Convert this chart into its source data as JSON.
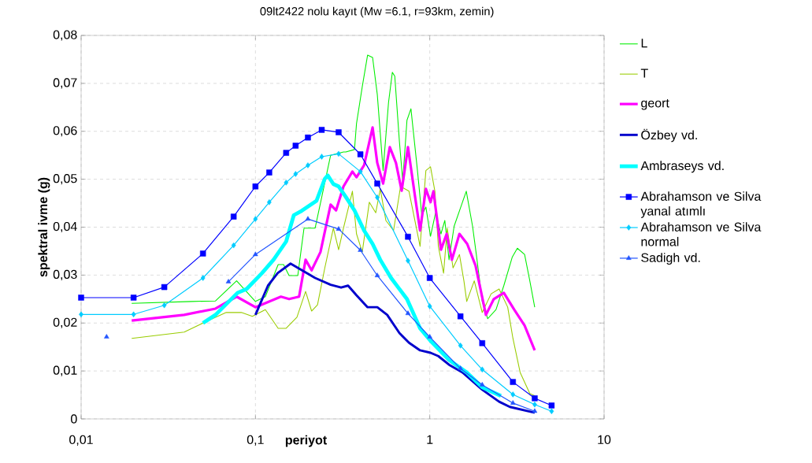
{
  "chart_data": {
    "type": "line",
    "title": "09lt2422 nolu kayıt (Mw =6.1, r=93km, zemin)",
    "xlabel": "periyot",
    "ylabel": "spektral ivme (g)",
    "log": "x",
    "grid": true,
    "legend": "right",
    "line_style": "solid",
    "xlim": [
      0.01,
      10
    ],
    "ylim": [
      0,
      0.08
    ],
    "xticks": [
      {
        "value": 0.01,
        "label": "0,01"
      },
      {
        "value": 0.1,
        "label": "0,1"
      },
      1,
      10
    ],
    "yticks": [
      0,
      {
        "value": 0.01,
        "label": "0,01"
      },
      {
        "value": 0.02,
        "label": "0,02"
      },
      {
        "value": 0.03,
        "label": "0,03"
      },
      {
        "value": 0.04,
        "label": "0,04"
      },
      {
        "value": 0.05,
        "label": "0,05"
      },
      {
        "value": 0.06,
        "label": "0,06"
      },
      {
        "value": 0.07,
        "label": "0,07"
      },
      {
        "value": 0.08,
        "label": "0,08"
      }
    ],
    "series": [
      {
        "name": "L",
        "color": "#00ee00",
        "marker": "none",
        "x": [
          0.0195,
          0.043,
          0.059,
          0.078,
          0.1,
          0.114,
          0.135,
          0.145,
          0.156,
          0.175,
          0.184,
          0.19,
          0.22,
          0.27,
          0.32,
          0.33,
          0.37,
          0.38,
          0.41,
          0.44,
          0.47,
          0.5,
          0.54,
          0.58,
          0.61,
          0.63,
          0.67,
          0.7,
          0.74,
          0.78,
          0.85,
          0.9,
          0.95,
          1.01,
          1.08,
          1.16,
          1.22,
          1.29,
          1.38,
          1.54,
          1.62,
          1.76,
          1.85,
          2.0,
          2.15,
          2.4,
          2.66,
          2.97,
          3.18,
          3.5,
          3.75,
          4.0
        ],
        "values": [
          0.0241,
          0.0245,
          0.0246,
          0.0288,
          0.0245,
          0.0255,
          0.0322,
          0.0322,
          0.0299,
          0.0299,
          0.036,
          0.0398,
          0.0398,
          0.055,
          0.0557,
          0.0557,
          0.0562,
          0.0616,
          0.0693,
          0.0759,
          0.0754,
          0.0677,
          0.0518,
          0.066,
          0.0723,
          0.0715,
          0.0578,
          0.0496,
          0.0623,
          0.0647,
          0.0518,
          0.0425,
          0.0442,
          0.0381,
          0.043,
          0.0386,
          0.0414,
          0.0332,
          0.0402,
          0.0452,
          0.0475,
          0.0402,
          0.0343,
          0.0245,
          0.0209,
          0.0228,
          0.0278,
          0.0337,
          0.0356,
          0.0343,
          0.0288,
          0.0233
        ]
      },
      {
        "name": "T",
        "color": "#99cc00",
        "marker": "none",
        "x": [
          0.0195,
          0.039,
          0.05,
          0.068,
          0.083,
          0.096,
          0.114,
          0.135,
          0.15,
          0.173,
          0.194,
          0.21,
          0.227,
          0.25,
          0.28,
          0.3,
          0.32,
          0.36,
          0.38,
          0.41,
          0.45,
          0.49,
          0.52,
          0.56,
          0.62,
          0.68,
          0.76,
          0.88,
          0.95,
          1.01,
          1.07,
          1.12,
          1.2,
          1.26,
          1.36,
          1.48,
          1.57,
          1.63,
          1.8,
          2.0,
          2.25,
          2.5,
          2.8,
          3.0,
          3.3,
          3.75,
          4.0
        ],
        "values": [
          0.0168,
          0.0181,
          0.02,
          0.0222,
          0.0222,
          0.0214,
          0.0228,
          0.0189,
          0.0189,
          0.0212,
          0.0266,
          0.0225,
          0.0238,
          0.0315,
          0.0398,
          0.0353,
          0.0398,
          0.0475,
          0.0386,
          0.0348,
          0.0452,
          0.043,
          0.048,
          0.0414,
          0.0393,
          0.0485,
          0.0475,
          0.036,
          0.0518,
          0.0526,
          0.0475,
          0.036,
          0.0304,
          0.0398,
          0.0315,
          0.0343,
          0.0288,
          0.0245,
          0.0288,
          0.0222,
          0.0261,
          0.0271,
          0.0233,
          0.0168,
          0.0097,
          0.0053,
          0.0048
        ]
      },
      {
        "name": "geort",
        "color": "#ff00ff",
        "marker": "none",
        "x": [
          0.0195,
          0.039,
          0.059,
          0.078,
          0.1,
          0.14,
          0.156,
          0.178,
          0.194,
          0.21,
          0.236,
          0.27,
          0.29,
          0.32,
          0.36,
          0.38,
          0.42,
          0.47,
          0.5,
          0.54,
          0.59,
          0.64,
          0.69,
          0.75,
          0.82,
          0.88,
          0.95,
          1.01,
          1.05,
          1.16,
          1.25,
          1.34,
          1.48,
          1.64,
          1.83,
          2.1,
          2.33,
          2.66,
          3.05,
          3.5,
          4.0
        ],
        "values": [
          0.0205,
          0.0217,
          0.023,
          0.0255,
          0.0233,
          0.0255,
          0.025,
          0.0255,
          0.0332,
          0.031,
          0.0348,
          0.0447,
          0.0435,
          0.0485,
          0.0516,
          0.0504,
          0.0529,
          0.0608,
          0.0534,
          0.0491,
          0.0567,
          0.0534,
          0.0476,
          0.0567,
          0.0468,
          0.0393,
          0.048,
          0.0452,
          0.0475,
          0.0353,
          0.0386,
          0.0332,
          0.0386,
          0.0365,
          0.032,
          0.0217,
          0.025,
          0.0263,
          0.0228,
          0.0195,
          0.0143
        ]
      },
      {
        "name": "Özbey vd.",
        "color": "#0000cc",
        "marker": "none",
        "x": [
          0.1,
          0.118,
          0.134,
          0.159,
          0.22,
          0.27,
          0.31,
          0.34,
          0.38,
          0.44,
          0.5,
          0.57,
          0.67,
          0.76,
          0.88,
          1.01,
          1.12,
          1.29,
          1.54,
          2.0,
          2.5,
          2.88,
          4.0
        ],
        "values": [
          0.0217,
          0.0278,
          0.0304,
          0.0324,
          0.0294,
          0.028,
          0.0274,
          0.0278,
          0.0258,
          0.0233,
          0.0233,
          0.0217,
          0.0179,
          0.0159,
          0.0143,
          0.0138,
          0.0131,
          0.0113,
          0.0097,
          0.0061,
          0.0036,
          0.0025,
          0.0013
        ]
      },
      {
        "name": "Ambraseys vd.",
        "color": "#00ffff",
        "marker": "none",
        "x": [
          0.05,
          0.059,
          0.079,
          0.089,
          0.109,
          0.127,
          0.15,
          0.166,
          0.184,
          0.224,
          0.25,
          0.26,
          0.28,
          0.3,
          0.33,
          0.37,
          0.42,
          0.47,
          0.52,
          0.6,
          0.74,
          0.88,
          1.01,
          1.29,
          1.63,
          2.0,
          2.56
        ],
        "values": [
          0.02,
          0.0217,
          0.0263,
          0.0271,
          0.0304,
          0.0332,
          0.037,
          0.0425,
          0.0434,
          0.0455,
          0.0501,
          0.0508,
          0.049,
          0.0485,
          0.0463,
          0.0435,
          0.0393,
          0.0365,
          0.0332,
          0.0294,
          0.025,
          0.0189,
          0.0163,
          0.0123,
          0.0097,
          0.0066,
          0.0048
        ]
      },
      {
        "name": "Abrahamson ve Silva yanal atımlı",
        "color": "#0000ff",
        "marker": "square",
        "x": [
          0.01,
          0.02,
          0.03,
          0.05,
          0.075,
          0.1,
          0.12,
          0.15,
          0.17,
          0.2,
          0.24,
          0.3,
          0.4,
          0.5,
          0.75,
          1,
          1.5,
          2,
          3,
          4,
          5
        ],
        "values": [
          0.0253,
          0.0253,
          0.0275,
          0.0345,
          0.0422,
          0.0485,
          0.0514,
          0.0555,
          0.057,
          0.0587,
          0.0603,
          0.0598,
          0.0552,
          0.0491,
          0.038,
          0.0294,
          0.0214,
          0.0158,
          0.0077,
          0.0043,
          0.0028
        ]
      },
      {
        "name": "Abrahamson ve Silva normal",
        "color": "#00ccff",
        "marker": "diamond",
        "x": [
          0.01,
          0.02,
          0.03,
          0.05,
          0.075,
          0.1,
          0.12,
          0.15,
          0.17,
          0.2,
          0.24,
          0.3,
          0.4,
          0.5,
          0.75,
          1,
          1.5,
          2,
          3,
          4,
          5
        ],
        "values": [
          0.0218,
          0.0218,
          0.0237,
          0.0294,
          0.0362,
          0.0417,
          0.0452,
          0.0493,
          0.0511,
          0.0529,
          0.0547,
          0.0553,
          0.0516,
          0.0462,
          0.033,
          0.0235,
          0.0153,
          0.0103,
          0.0051,
          0.003,
          0.0016
        ]
      },
      {
        "name": "Sadigh vd.",
        "color": "#2255ff",
        "marker": "triangle",
        "x": [
          0.014,
          0.05,
          0.07,
          0.1,
          0.2,
          0.3,
          0.4,
          0.5,
          0.75,
          1,
          1.5,
          2,
          3,
          4
        ],
        "values": [
          0.0171,
          null,
          0.0286,
          0.0343,
          0.0417,
          0.0396,
          0.0352,
          0.0299,
          0.022,
          0.0171,
          0.0105,
          0.0071,
          0.0033,
          0.0016
        ]
      }
    ]
  }
}
